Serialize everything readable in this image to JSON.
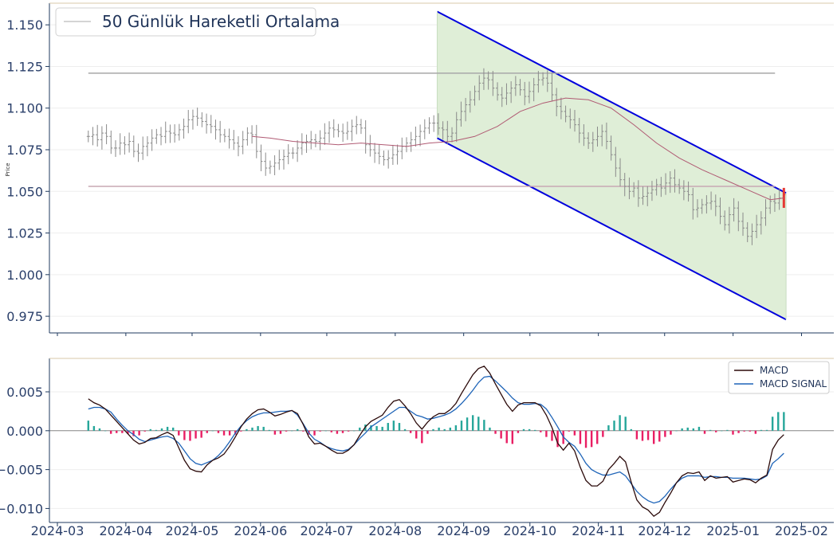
{
  "chart_data": [
    {
      "type": "ohlc",
      "ylabel": "Price",
      "ylim": [
        0.965,
        1.163
      ],
      "yticks": [
        "1.150",
        "1.125",
        "1.100",
        "1.075",
        "1.050",
        "1.025",
        "1.000",
        "0.975"
      ],
      "ytick_values": [
        1.15,
        1.125,
        1.1,
        1.075,
        1.05,
        1.025,
        1.0,
        0.975
      ],
      "legend": {
        "position": "top-left",
        "entries": [
          "50 Günlük Hareketli Ortalama"
        ]
      },
      "grid": true,
      "horizontal_lines": [
        {
          "y": 1.121,
          "x_start": "2024-03-15",
          "x_end": "2025-01-20",
          "color": "#a8a8a8"
        },
        {
          "y": 1.053,
          "x_start": "2024-03-15",
          "x_end": "2025-01-20",
          "color": "#c9a9b4"
        }
      ],
      "channel": {
        "start": "2024-08-20",
        "end": "2025-01-25",
        "upper": [
          1.158,
          1.049
        ],
        "lower": [
          1.082,
          0.973
        ],
        "fill": "#dfeed7",
        "line_color": "#0000dd"
      },
      "ohlc_close": [
        [
          0,
          1.083
        ],
        [
          1,
          1.084
        ],
        [
          2,
          1.081
        ],
        [
          3,
          1.085
        ],
        [
          4,
          1.083
        ],
        [
          5,
          1.076
        ],
        [
          6,
          1.076
        ],
        [
          7,
          1.079
        ],
        [
          8,
          1.078
        ],
        [
          9,
          1.08
        ],
        [
          10,
          1.074
        ],
        [
          11,
          1.073
        ],
        [
          12,
          1.077
        ],
        [
          13,
          1.079
        ],
        [
          14,
          1.082
        ],
        [
          15,
          1.084
        ],
        [
          16,
          1.083
        ],
        [
          17,
          1.086
        ],
        [
          18,
          1.085
        ],
        [
          19,
          1.084
        ],
        [
          20,
          1.087
        ],
        [
          21,
          1.089
        ],
        [
          22,
          1.093
        ],
        [
          23,
          1.095
        ],
        [
          24,
          1.094
        ],
        [
          25,
          1.092
        ],
        [
          26,
          1.09
        ],
        [
          27,
          1.089
        ],
        [
          28,
          1.087
        ],
        [
          29,
          1.084
        ],
        [
          30,
          1.083
        ],
        [
          31,
          1.081
        ],
        [
          32,
          1.079
        ],
        [
          33,
          1.077
        ],
        [
          34,
          1.081
        ],
        [
          35,
          1.085
        ],
        [
          36,
          1.084
        ],
        [
          37,
          1.074
        ],
        [
          38,
          1.068
        ],
        [
          39,
          1.064
        ],
        [
          40,
          1.065
        ],
        [
          41,
          1.067
        ],
        [
          42,
          1.069
        ],
        [
          43,
          1.071
        ],
        [
          44,
          1.073
        ],
        [
          45,
          1.073
        ],
        [
          46,
          1.076
        ],
        [
          47,
          1.079
        ],
        [
          48,
          1.08
        ],
        [
          49,
          1.081
        ],
        [
          50,
          1.08
        ],
        [
          51,
          1.082
        ],
        [
          52,
          1.085
        ],
        [
          53,
          1.088
        ],
        [
          54,
          1.087
        ],
        [
          55,
          1.086
        ],
        [
          56,
          1.085
        ],
        [
          57,
          1.086
        ],
        [
          58,
          1.089
        ],
        [
          59,
          1.09
        ],
        [
          60,
          1.088
        ],
        [
          61,
          1.078
        ],
        [
          62,
          1.075
        ],
        [
          63,
          1.073
        ],
        [
          64,
          1.071
        ],
        [
          65,
          1.069
        ],
        [
          66,
          1.07
        ],
        [
          67,
          1.072
        ],
        [
          68,
          1.074
        ],
        [
          69,
          1.077
        ],
        [
          70,
          1.079
        ],
        [
          71,
          1.081
        ],
        [
          72,
          1.083
        ],
        [
          73,
          1.086
        ],
        [
          74,
          1.088
        ],
        [
          75,
          1.091
        ],
        [
          76,
          1.091
        ],
        [
          77,
          1.088
        ],
        [
          78,
          1.087
        ],
        [
          79,
          1.083
        ],
        [
          80,
          1.085
        ],
        [
          81,
          1.093
        ],
        [
          82,
          1.098
        ],
        [
          83,
          1.102
        ],
        [
          84,
          1.105
        ],
        [
          85,
          1.11
        ],
        [
          86,
          1.115
        ],
        [
          87,
          1.118
        ],
        [
          88,
          1.117
        ],
        [
          89,
          1.112
        ],
        [
          90,
          1.108
        ],
        [
          91,
          1.106
        ],
        [
          92,
          1.109
        ],
        [
          93,
          1.112
        ],
        [
          94,
          1.114
        ],
        [
          95,
          1.111
        ],
        [
          96,
          1.107
        ],
        [
          97,
          1.11
        ],
        [
          98,
          1.114
        ],
        [
          99,
          1.117
        ],
        [
          100,
          1.118
        ],
        [
          101,
          1.115
        ],
        [
          102,
          1.108
        ],
        [
          103,
          1.101
        ],
        [
          104,
          1.098
        ],
        [
          105,
          1.095
        ],
        [
          106,
          1.093
        ],
        [
          107,
          1.09
        ],
        [
          108,
          1.085
        ],
        [
          109,
          1.082
        ],
        [
          110,
          1.079
        ],
        [
          111,
          1.081
        ],
        [
          112,
          1.083
        ],
        [
          113,
          1.086
        ],
        [
          114,
          1.08
        ],
        [
          115,
          1.072
        ],
        [
          116,
          1.064
        ],
        [
          117,
          1.057
        ],
        [
          118,
          1.053
        ],
        [
          119,
          1.05
        ],
        [
          120,
          1.052
        ],
        [
          121,
          1.046
        ],
        [
          122,
          1.047
        ],
        [
          123,
          1.049
        ],
        [
          124,
          1.051
        ],
        [
          125,
          1.054
        ],
        [
          126,
          1.052
        ],
        [
          127,
          1.055
        ],
        [
          128,
          1.058
        ],
        [
          129,
          1.054
        ],
        [
          130,
          1.052
        ],
        [
          131,
          1.05
        ],
        [
          132,
          1.048
        ],
        [
          133,
          1.039
        ],
        [
          134,
          1.04
        ],
        [
          135,
          1.042
        ],
        [
          136,
          1.043
        ],
        [
          137,
          1.044
        ],
        [
          138,
          1.041
        ],
        [
          139,
          1.035
        ],
        [
          140,
          1.03
        ],
        [
          141,
          1.036
        ],
        [
          142,
          1.04
        ],
        [
          143,
          1.032
        ],
        [
          144,
          1.028
        ],
        [
          145,
          1.023
        ],
        [
          146,
          1.026
        ],
        [
          147,
          1.03
        ],
        [
          148,
          1.034
        ],
        [
          149,
          1.04
        ],
        [
          150,
          1.044
        ],
        [
          151,
          1.043
        ],
        [
          152,
          1.046
        ],
        [
          153,
          1.048
        ]
      ],
      "moving_average_50": [
        [
          36,
          1.083
        ],
        [
          40,
          1.082
        ],
        [
          45,
          1.08
        ],
        [
          50,
          1.079
        ],
        [
          55,
          1.078
        ],
        [
          60,
          1.079
        ],
        [
          65,
          1.078
        ],
        [
          70,
          1.077
        ],
        [
          75,
          1.079
        ],
        [
          80,
          1.08
        ],
        [
          85,
          1.083
        ],
        [
          90,
          1.089
        ],
        [
          95,
          1.098
        ],
        [
          100,
          1.103
        ],
        [
          105,
          1.106
        ],
        [
          110,
          1.105
        ],
        [
          115,
          1.1
        ],
        [
          120,
          1.09
        ],
        [
          125,
          1.079
        ],
        [
          130,
          1.07
        ],
        [
          135,
          1.063
        ],
        [
          140,
          1.057
        ],
        [
          145,
          1.051
        ],
        [
          150,
          1.045
        ],
        [
          153,
          1.046
        ]
      ],
      "x_dates": {
        "start": "2024-03-15",
        "end": "2025-01-25"
      }
    },
    {
      "type": "macd",
      "ylim": [
        -0.0118,
        0.0093
      ],
      "yticks": [
        "0.005",
        "0.000",
        "−0.005",
        "−0.010"
      ],
      "ytick_values": [
        0.005,
        0.0,
        -0.005,
        -0.01
      ],
      "xticks": [
        "2024-03",
        "2024-04",
        "2024-05",
        "2024-06",
        "2024-07",
        "2024-08",
        "2024-09",
        "2024-10",
        "2024-11",
        "2024-12",
        "2025-01",
        "2025-02"
      ],
      "legend": {
        "position": "top-right",
        "entries": [
          "MACD",
          "MACD SIGNAL"
        ]
      },
      "colors": {
        "macd": "#2b0a0a",
        "signal": "#1e64b8",
        "hist_pos": "#26a69a",
        "hist_neg": "#e91e63"
      },
      "series": [
        {
          "name": "MACD",
          "values": [
            0.0041,
            0.0036,
            0.0033,
            0.0028,
            0.002,
            0.0012,
            0.0004,
            -0.0004,
            -0.0012,
            -0.0017,
            -0.0015,
            -0.001,
            -0.0009,
            -0.0005,
            -0.0002,
            -0.0006,
            -0.0022,
            -0.0038,
            -0.0049,
            -0.0052,
            -0.0053,
            -0.0044,
            -0.0038,
            -0.0035,
            -0.003,
            -0.002,
            -0.0008,
            0.0005,
            0.0015,
            0.0022,
            0.0027,
            0.0028,
            0.0024,
            0.0019,
            0.0021,
            0.0024,
            0.0026,
            0.0022,
            0.0008,
            -0.0008,
            -0.0017,
            -0.0016,
            -0.002,
            -0.0025,
            -0.0029,
            -0.0029,
            -0.0025,
            -0.0018,
            -0.0006,
            0.0005,
            0.0012,
            0.0016,
            0.002,
            0.003,
            0.0038,
            0.004,
            0.0032,
            0.0022,
            0.001,
            0.0002,
            0.0011,
            0.0018,
            0.0022,
            0.0022,
            0.0027,
            0.0035,
            0.0048,
            0.006,
            0.0072,
            0.008,
            0.0083,
            0.0074,
            0.006,
            0.0047,
            0.0034,
            0.0025,
            0.0033,
            0.0036,
            0.0036,
            0.0036,
            0.0032,
            0.002,
            0.0004,
            -0.0016,
            -0.0025,
            -0.0016,
            -0.0026,
            -0.0047,
            -0.0064,
            -0.0071,
            -0.0071,
            -0.0065,
            -0.005,
            -0.0042,
            -0.0033,
            -0.004,
            -0.0066,
            -0.0089,
            -0.0098,
            -0.0102,
            -0.011,
            -0.0105,
            -0.0092,
            -0.008,
            -0.0067,
            -0.0058,
            -0.0054,
            -0.0055,
            -0.0053,
            -0.0064,
            -0.0058,
            -0.0061,
            -0.006,
            -0.0059,
            -0.0066,
            -0.0064,
            -0.0062,
            -0.0063,
            -0.0067,
            -0.0061,
            -0.0057,
            -0.0024,
            -0.0012,
            -0.0005
          ]
        },
        {
          "name": "MACD SIGNAL",
          "values": [
            0.0028,
            0.003,
            0.003,
            0.0028,
            0.0024,
            0.0015,
            0.0007,
            0.0,
            -0.0005,
            -0.0011,
            -0.0014,
            -0.0012,
            -0.001,
            -0.0008,
            -0.0007,
            -0.001,
            -0.0016,
            -0.0026,
            -0.0036,
            -0.0042,
            -0.0044,
            -0.0041,
            -0.0038,
            -0.0032,
            -0.0024,
            -0.0014,
            -0.0003,
            0.0006,
            0.0013,
            0.0018,
            0.0021,
            0.0023,
            0.0023,
            0.0024,
            0.0025,
            0.0025,
            0.0026,
            0.002,
            0.0009,
            -0.0003,
            -0.0011,
            -0.0015,
            -0.002,
            -0.0023,
            -0.0025,
            -0.0026,
            -0.0024,
            -0.0018,
            -0.001,
            -0.0003,
            0.0005,
            0.001,
            0.0015,
            0.002,
            0.0025,
            0.003,
            0.003,
            0.0025,
            0.002,
            0.0018,
            0.0015,
            0.0016,
            0.0018,
            0.002,
            0.0023,
            0.0028,
            0.0035,
            0.0043,
            0.0052,
            0.0062,
            0.0069,
            0.007,
            0.0064,
            0.0057,
            0.005,
            0.0042,
            0.0036,
            0.0034,
            0.0034,
            0.0035,
            0.0034,
            0.0028,
            0.0017,
            0.0005,
            -0.0008,
            -0.0015,
            -0.002,
            -0.003,
            -0.0042,
            -0.005,
            -0.0054,
            -0.0057,
            -0.0057,
            -0.0055,
            -0.0053,
            -0.0058,
            -0.0068,
            -0.0078,
            -0.0085,
            -0.009,
            -0.0093,
            -0.0091,
            -0.0084,
            -0.0075,
            -0.0067,
            -0.0061,
            -0.0058,
            -0.0058,
            -0.0058,
            -0.006,
            -0.0059,
            -0.0059,
            -0.006,
            -0.006,
            -0.0061,
            -0.0061,
            -0.0061,
            -0.0062,
            -0.0063,
            -0.0062,
            -0.0058,
            -0.0042,
            -0.0036,
            -0.0029
          ]
        }
      ]
    }
  ]
}
